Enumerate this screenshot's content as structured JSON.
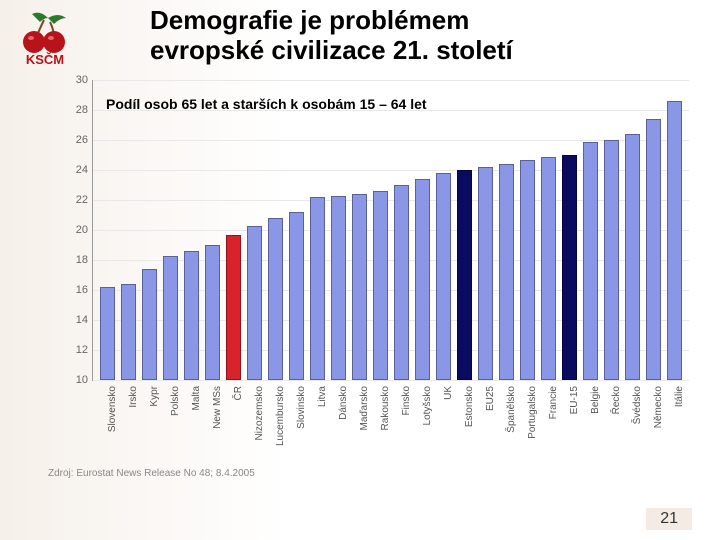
{
  "header": {
    "title_line1": "Demografie je problémem",
    "title_line2": "evropské civilizace 21. století"
  },
  "logo": {
    "cherry_color": "#b8121a",
    "leaf_color": "#2b7a2b",
    "text": "KSČM",
    "text_color": "#b8121a"
  },
  "chart": {
    "type": "bar",
    "subtitle": "Podíl osob 65 let a starších k osobám 15 – 64 let",
    "ylabel": "",
    "ylim_min": 10,
    "ylim_max": 30,
    "ytick_step": 2,
    "yticks": [
      10,
      12,
      14,
      16,
      18,
      20,
      22,
      24,
      26,
      28,
      30
    ],
    "background_color": "#ffffff",
    "grid_color": "#e8e8e8",
    "axis_color": "#999999",
    "tick_font_size": 11,
    "xlabel_font_size": 10,
    "bar_border_color": "rgba(0,0,0,0.35)",
    "bar_default_color": "#8a96e6",
    "bar_highlight_red": "#d8232a",
    "bar_highlight_dark": "#0a0a60",
    "bar_width_ratio": 0.68,
    "categories": [
      "Slovensko",
      "Irsko",
      "Kypr",
      "Polsko",
      "Malta",
      "New MSs",
      "ČR",
      "Nizozemsko",
      "Lucembursko",
      "Slovinsko",
      "Litva",
      "Dánsko",
      "Maďarsko",
      "Rakousko",
      "Finsko",
      "Lotyšsko",
      "UK",
      "Estonsko",
      "EU25",
      "Španělsko",
      "Portugalsko",
      "Francie",
      "EU-15",
      "Belgie",
      "Řecko",
      "Švédsko",
      "Německo",
      "Itálie"
    ],
    "values": [
      16.2,
      16.4,
      17.4,
      18.3,
      18.6,
      19.0,
      19.7,
      20.3,
      20.8,
      21.2,
      22.2,
      22.3,
      22.4,
      22.6,
      23.0,
      23.4,
      23.8,
      24.0,
      24.2,
      24.4,
      24.7,
      24.9,
      25.0,
      25.9,
      26.0,
      26.4,
      27.4,
      28.6
    ],
    "bar_colors": [
      "#8a96e6",
      "#8a96e6",
      "#8a96e6",
      "#8a96e6",
      "#8a96e6",
      "#8a96e6",
      "#d8232a",
      "#8a96e6",
      "#8a96e6",
      "#8a96e6",
      "#8a96e6",
      "#8a96e6",
      "#8a96e6",
      "#8a96e6",
      "#8a96e6",
      "#8a96e6",
      "#8a96e6",
      "#0a0a60",
      "#8a96e6",
      "#8a96e6",
      "#8a96e6",
      "#8a96e6",
      "#0a0a60",
      "#8a96e6",
      "#8a96e6",
      "#8a96e6",
      "#8a96e6",
      "#8a96e6"
    ]
  },
  "source_line": "Zdroj: Eurostat News Release No 48; 8.4.2005",
  "page_number": "21"
}
